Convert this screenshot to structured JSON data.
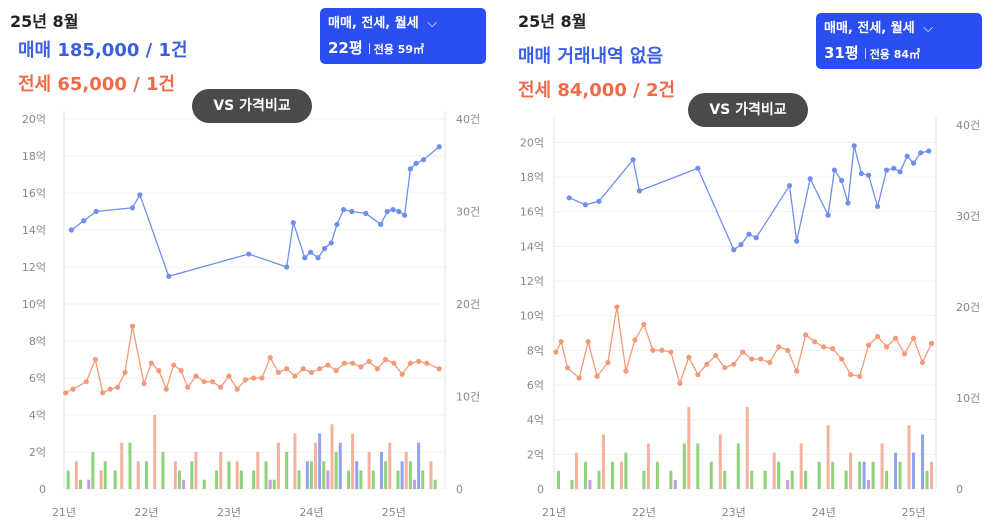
{
  "panels": [
    {
      "month": "25년 8월",
      "sale_text": "매매 185,000 / 1건",
      "rent_text": "전세 65,000 / 1건",
      "filter_label": "매매, 전세, 월세",
      "size_label": "22평",
      "area_label": "전용 59㎡",
      "vs_label": "VS 가격비교"
    },
    {
      "month": "25년 8월",
      "sale_text": "매매 거래내역 없음",
      "rent_text": "전세 84,000 / 2건",
      "filter_label": "매매, 전세, 월세",
      "size_label": "31평",
      "area_label": "전용 84㎡",
      "vs_label": "VS 가격비교"
    }
  ],
  "chart_data": [
    {
      "type": "line",
      "x_tick_labels": [
        "21년",
        "22년",
        "23년",
        "24년",
        "25년"
      ],
      "x_range": [
        2021.0,
        2025.62
      ],
      "y_left_labels": [
        "0",
        "2억",
        "4억",
        "6억",
        "8억",
        "10억",
        "12억",
        "14억",
        "16억",
        "18억",
        "20억"
      ],
      "y_left_range": [
        0,
        20
      ],
      "y_right_labels": [
        "0",
        "10건",
        "20건",
        "30건",
        "40건"
      ],
      "y_right_range": [
        0,
        40
      ],
      "colors": {
        "sale": "#6f8ff0",
        "rent": "#f59a78",
        "sale_bar": "#8fa3ee",
        "rent_bar": "#f6b19c",
        "monthly_bar": "#8fd27a",
        "other_bar": "#c79be0"
      },
      "sale_series": {
        "x": [
          2021.09,
          2021.24,
          2021.39,
          2021.83,
          2021.92,
          2022.27,
          2023.24,
          2023.7,
          2023.78,
          2023.92,
          2023.99,
          2024.08,
          2024.16,
          2024.24,
          2024.31,
          2024.39,
          2024.49,
          2024.66,
          2024.84,
          2024.92,
          2024.99,
          2025.06,
          2025.13,
          2025.2,
          2025.27,
          2025.36,
          2025.55
        ],
        "y": [
          14.0,
          14.5,
          15.0,
          15.2,
          15.9,
          11.5,
          12.7,
          12.0,
          14.4,
          12.5,
          12.8,
          12.5,
          13.0,
          13.3,
          14.3,
          15.1,
          15.0,
          14.9,
          14.3,
          15.0,
          15.1,
          15.0,
          14.8,
          17.3,
          17.6,
          17.8,
          18.5
        ]
      },
      "rent_series": {
        "x": [
          2021.02,
          2021.11,
          2021.27,
          2021.38,
          2021.47,
          2021.56,
          2021.65,
          2021.74,
          2021.83,
          2021.97,
          2022.06,
          2022.15,
          2022.24,
          2022.33,
          2022.42,
          2022.5,
          2022.6,
          2022.7,
          2022.8,
          2022.9,
          2023.0,
          2023.1,
          2023.2,
          2023.3,
          2023.4,
          2023.5,
          2023.6,
          2023.7,
          2023.8,
          2023.9,
          2024.0,
          2024.1,
          2024.2,
          2024.3,
          2024.4,
          2024.5,
          2024.6,
          2024.7,
          2024.8,
          2024.9,
          2025.0,
          2025.1,
          2025.2,
          2025.3,
          2025.4,
          2025.55
        ],
        "y": [
          5.2,
          5.4,
          5.8,
          7.0,
          5.2,
          5.4,
          5.5,
          6.3,
          8.8,
          5.7,
          6.8,
          6.4,
          5.4,
          6.7,
          6.4,
          5.5,
          6.1,
          5.8,
          5.8,
          5.5,
          6.1,
          5.4,
          5.9,
          6.0,
          6.0,
          7.1,
          6.3,
          6.5,
          6.1,
          6.5,
          6.3,
          6.5,
          6.7,
          6.4,
          6.8,
          6.8,
          6.6,
          6.9,
          6.5,
          7.0,
          6.8,
          6.2,
          6.8,
          6.9,
          6.8,
          6.5
        ]
      },
      "volume_bars": [
        {
          "series": "monthly",
          "x": [
            2021.05,
            2021.2,
            2021.35,
            2021.5,
            2021.62,
            2021.8,
            2022.0,
            2022.2,
            2022.4,
            2022.55,
            2022.7,
            2022.85,
            2023.0,
            2023.15,
            2023.3,
            2023.45,
            2023.55,
            2023.7,
            2023.85,
            2024.0,
            2024.15,
            2024.3,
            2024.45,
            2024.6,
            2024.75,
            2024.9,
            2025.05,
            2025.2,
            2025.35,
            2025.5
          ],
          "values": [
            2,
            1,
            4,
            3,
            2,
            5,
            3,
            4,
            2,
            3,
            1,
            2,
            3,
            2,
            2,
            3,
            1,
            4,
            2,
            3,
            3,
            4,
            2,
            2,
            2,
            3,
            2,
            3,
            2,
            1
          ]
        },
        {
          "series": "rent",
          "x": [
            2021.15,
            2021.45,
            2021.7,
            2021.9,
            2022.1,
            2022.35,
            2022.6,
            2022.9,
            2023.1,
            2023.35,
            2023.6,
            2023.8,
            2024.05,
            2024.25,
            2024.5,
            2024.7,
            2024.95,
            2025.15,
            2025.45
          ],
          "values": [
            3,
            2,
            5,
            3,
            8,
            3,
            4,
            4,
            3,
            4,
            5,
            6,
            5,
            7,
            6,
            4,
            5,
            4,
            3
          ]
        },
        {
          "series": "sale",
          "x": [
            2023.95,
            2024.1,
            2024.35,
            2024.55,
            2024.85,
            2025.1,
            2025.3
          ],
          "values": [
            3,
            6,
            5,
            3,
            4,
            3,
            5
          ]
        },
        {
          "series": "other",
          "x": [
            2021.3,
            2022.45,
            2023.5,
            2024.2,
            2025.25
          ],
          "values": [
            1,
            1,
            1,
            2,
            1
          ]
        }
      ]
    },
    {
      "type": "line",
      "x_tick_labels": [
        "21년",
        "22년",
        "23년",
        "24년",
        "25년"
      ],
      "x_range": [
        2021.0,
        2025.25
      ],
      "y_left_labels": [
        "0",
        "2억",
        "4억",
        "6억",
        "8억",
        "10억",
        "12억",
        "14억",
        "16억",
        "18억",
        "20억"
      ],
      "y_left_range": [
        0,
        21
      ],
      "y_right_labels": [
        "0",
        "10건",
        "20건",
        "30건",
        "40건"
      ],
      "y_right_range": [
        0,
        40
      ],
      "colors": {
        "sale": "#6f8ff0",
        "rent": "#f59a78",
        "sale_bar": "#8fa3ee",
        "rent_bar": "#f6b19c",
        "monthly_bar": "#8fd27a",
        "other_bar": "#c79be0"
      },
      "sale_series": {
        "x": [
          2021.17,
          2021.35,
          2021.5,
          2021.88,
          2021.95,
          2022.6,
          2023.0,
          2023.08,
          2023.17,
          2023.25,
          2023.62,
          2023.7,
          2023.85,
          2024.05,
          2024.12,
          2024.2,
          2024.27,
          2024.34,
          2024.42,
          2024.5,
          2024.6,
          2024.7,
          2024.78,
          2024.85,
          2024.93,
          2025.0,
          2025.08,
          2025.17
        ],
        "y": [
          16.8,
          16.4,
          16.6,
          19.0,
          17.2,
          18.5,
          13.8,
          14.1,
          14.7,
          14.5,
          17.5,
          14.3,
          17.9,
          15.8,
          18.4,
          17.8,
          16.5,
          19.8,
          18.2,
          18.1,
          16.3,
          18.4,
          18.5,
          18.3,
          19.2,
          18.8,
          19.4,
          19.5
        ]
      },
      "rent_series": {
        "x": [
          2021.02,
          2021.08,
          2021.15,
          2021.28,
          2021.38,
          2021.48,
          2021.6,
          2021.7,
          2021.8,
          2021.9,
          2022.0,
          2022.1,
          2022.2,
          2022.3,
          2022.4,
          2022.5,
          2022.6,
          2022.7,
          2022.8,
          2022.9,
          2023.0,
          2023.1,
          2023.2,
          2023.3,
          2023.4,
          2023.5,
          2023.6,
          2023.7,
          2023.8,
          2023.9,
          2024.0,
          2024.1,
          2024.2,
          2024.3,
          2024.4,
          2024.5,
          2024.6,
          2024.7,
          2024.8,
          2024.9,
          2025.0,
          2025.1,
          2025.2
        ],
        "y": [
          7.9,
          8.5,
          7.0,
          6.4,
          8.5,
          6.5,
          7.3,
          10.5,
          6.8,
          8.6,
          9.5,
          8.0,
          8.0,
          7.9,
          6.1,
          7.6,
          6.6,
          7.2,
          7.7,
          7.0,
          7.2,
          7.9,
          7.5,
          7.5,
          7.3,
          8.2,
          8.0,
          6.8,
          8.9,
          8.5,
          8.2,
          8.1,
          7.5,
          6.6,
          6.5,
          8.3,
          8.8,
          8.2,
          8.7,
          7.8,
          8.7,
          7.3,
          8.4
        ]
      },
      "volume_bars": [
        {
          "series": "monthly",
          "x": [
            2021.05,
            2021.2,
            2021.35,
            2021.5,
            2021.65,
            2021.8,
            2022.0,
            2022.15,
            2022.3,
            2022.45,
            2022.6,
            2022.75,
            2022.9,
            2023.05,
            2023.2,
            2023.35,
            2023.5,
            2023.65,
            2023.8,
            2023.95,
            2024.1,
            2024.25,
            2024.4,
            2024.55,
            2024.7,
            2024.85,
            2025.0,
            2025.15
          ],
          "values": [
            2,
            1,
            3,
            2,
            3,
            4,
            2,
            3,
            2,
            5,
            5,
            3,
            2,
            5,
            2,
            2,
            3,
            2,
            2,
            3,
            3,
            2,
            3,
            3,
            2,
            3,
            3,
            2
          ]
        },
        {
          "series": "rent",
          "x": [
            2021.25,
            2021.55,
            2021.75,
            2022.05,
            2022.5,
            2022.85,
            2023.15,
            2023.45,
            2023.75,
            2024.05,
            2024.3,
            2024.65,
            2024.95,
            2025.2
          ],
          "values": [
            4,
            6,
            3,
            5,
            9,
            6,
            9,
            4,
            5,
            7,
            4,
            5,
            7,
            3
          ]
        },
        {
          "series": "sale",
          "x": [
            2024.45,
            2024.8,
            2025.0,
            2025.1
          ],
          "values": [
            3,
            4,
            4,
            6
          ]
        },
        {
          "series": "other",
          "x": [
            2021.4,
            2022.35,
            2023.6,
            2024.5
          ],
          "values": [
            1,
            1,
            1,
            1
          ]
        }
      ]
    }
  ]
}
